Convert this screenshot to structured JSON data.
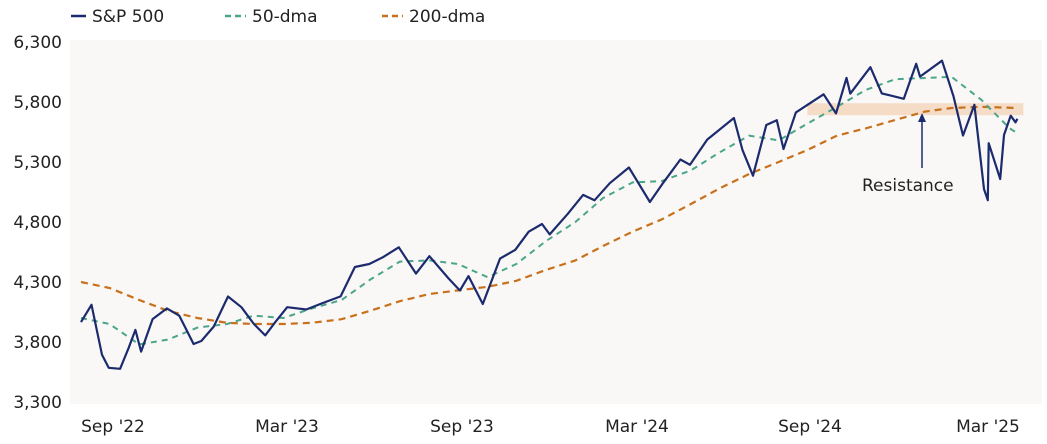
{
  "chart_data": {
    "type": "line",
    "title": "",
    "xlabel": "",
    "ylabel": "",
    "ylim": [
      3300,
      6300
    ],
    "y_ticks": [
      "6,300",
      "5,800",
      "5,300",
      "4,800",
      "4,300",
      "3,800",
      "3,300"
    ],
    "y_tick_values": [
      6300,
      5800,
      5300,
      4800,
      4300,
      3800,
      3300
    ],
    "x_ticks": [
      "Sep '22",
      "Mar '23",
      "Sep '23",
      "Mar '24",
      "Sep '24",
      "Mar '25"
    ],
    "grid": false,
    "legend": "top-left",
    "colors": {
      "sp500": "#1c2b6e",
      "dma50": "#4aa58a",
      "dma200": "#c8711c",
      "band": "#f4dcc6",
      "plot_bg": "#faf8f6"
    },
    "series": [
      {
        "name": "S&P 500",
        "style": "solid",
        "points": [
          [
            "2022-09-01",
            3966
          ],
          [
            "2022-09-12",
            4110
          ],
          [
            "2022-09-23",
            3693
          ],
          [
            "2022-09-30",
            3585
          ],
          [
            "2022-10-12",
            3577
          ],
          [
            "2022-10-21",
            3752
          ],
          [
            "2022-10-28",
            3901
          ],
          [
            "2022-11-03",
            3720
          ],
          [
            "2022-11-15",
            3991
          ],
          [
            "2022-11-30",
            4080
          ],
          [
            "2022-12-13",
            4019
          ],
          [
            "2022-12-28",
            3783
          ],
          [
            "2023-01-05",
            3808
          ],
          [
            "2023-01-18",
            3928
          ],
          [
            "2023-02-02",
            4179
          ],
          [
            "2023-02-16",
            4090
          ],
          [
            "2023-03-01",
            3951
          ],
          [
            "2023-03-13",
            3855
          ],
          [
            "2023-03-24",
            3970
          ],
          [
            "2023-04-05",
            4090
          ],
          [
            "2023-04-25",
            4071
          ],
          [
            "2023-05-12",
            4124
          ],
          [
            "2023-05-31",
            4180
          ],
          [
            "2023-06-15",
            4425
          ],
          [
            "2023-06-30",
            4450
          ],
          [
            "2023-07-14",
            4505
          ],
          [
            "2023-07-31",
            4589
          ],
          [
            "2023-08-18",
            4370
          ],
          [
            "2023-09-01",
            4515
          ],
          [
            "2023-09-21",
            4330
          ],
          [
            "2023-10-03",
            4229
          ],
          [
            "2023-10-12",
            4349
          ],
          [
            "2023-10-27",
            4117
          ],
          [
            "2023-11-14",
            4495
          ],
          [
            "2023-11-30",
            4568
          ],
          [
            "2023-12-14",
            4719
          ],
          [
            "2023-12-28",
            4783
          ],
          [
            "2024-01-05",
            4697
          ],
          [
            "2024-01-24",
            4868
          ],
          [
            "2024-02-09",
            5026
          ],
          [
            "2024-02-21",
            4981
          ],
          [
            "2024-03-08",
            5123
          ],
          [
            "2024-03-28",
            5254
          ],
          [
            "2024-04-19",
            4967
          ],
          [
            "2024-05-03",
            5127
          ],
          [
            "2024-05-21",
            5321
          ],
          [
            "2024-05-31",
            5277
          ],
          [
            "2024-06-18",
            5487
          ],
          [
            "2024-07-16",
            5667
          ],
          [
            "2024-07-25",
            5399
          ],
          [
            "2024-08-05",
            5186
          ],
          [
            "2024-08-19",
            5608
          ],
          [
            "2024-08-30",
            5648
          ],
          [
            "2024-09-06",
            5408
          ],
          [
            "2024-09-19",
            5713
          ],
          [
            "2024-10-18",
            5864
          ],
          [
            "2024-10-31",
            5705
          ],
          [
            "2024-11-11",
            6001
          ],
          [
            "2024-11-15",
            5870
          ],
          [
            "2024-12-06",
            6090
          ],
          [
            "2024-12-18",
            5872
          ],
          [
            "2025-01-10",
            5827
          ],
          [
            "2025-01-23",
            6118
          ],
          [
            "2025-01-27",
            6012
          ],
          [
            "2025-02-19",
            6144
          ],
          [
            "2025-03-03",
            5850
          ],
          [
            "2025-03-13",
            5521
          ],
          [
            "2025-03-25",
            5777
          ],
          [
            "2025-04-04",
            5074
          ],
          [
            "2025-04-08",
            4982
          ],
          [
            "2025-04-09",
            5457
          ],
          [
            "2025-04-21",
            5158
          ],
          [
            "2025-04-25",
            5525
          ],
          [
            "2025-05-02",
            5686
          ],
          [
            "2025-05-07",
            5631
          ],
          [
            "2025-05-09",
            5660
          ]
        ]
      },
      {
        "name": "50-dma",
        "style": "dashed",
        "points": [
          [
            "2022-09-01",
            4000
          ],
          [
            "2022-10-01",
            3950
          ],
          [
            "2022-11-01",
            3780
          ],
          [
            "2022-12-01",
            3820
          ],
          [
            "2023-01-01",
            3920
          ],
          [
            "2023-02-01",
            3950
          ],
          [
            "2023-03-01",
            4020
          ],
          [
            "2023-04-01",
            4000
          ],
          [
            "2023-05-01",
            4080
          ],
          [
            "2023-06-01",
            4150
          ],
          [
            "2023-07-01",
            4320
          ],
          [
            "2023-08-01",
            4470
          ],
          [
            "2023-09-01",
            4480
          ],
          [
            "2023-10-01",
            4450
          ],
          [
            "2023-11-01",
            4340
          ],
          [
            "2023-12-01",
            4450
          ],
          [
            "2024-01-01",
            4640
          ],
          [
            "2024-02-01",
            4800
          ],
          [
            "2024-03-01",
            5000
          ],
          [
            "2024-04-01",
            5130
          ],
          [
            "2024-05-01",
            5140
          ],
          [
            "2024-06-01",
            5230
          ],
          [
            "2024-07-01",
            5380
          ],
          [
            "2024-08-01",
            5520
          ],
          [
            "2024-09-01",
            5480
          ],
          [
            "2024-10-01",
            5620
          ],
          [
            "2024-11-01",
            5760
          ],
          [
            "2024-12-01",
            5900
          ],
          [
            "2025-01-01",
            5990
          ],
          [
            "2025-02-01",
            6000
          ],
          [
            "2025-03-01",
            6010
          ],
          [
            "2025-04-01",
            5820
          ],
          [
            "2025-05-01",
            5580
          ],
          [
            "2025-05-09",
            5540
          ]
        ]
      },
      {
        "name": "200-dma",
        "style": "dashed",
        "points": [
          [
            "2022-09-01",
            4300
          ],
          [
            "2022-10-01",
            4250
          ],
          [
            "2022-11-01",
            4150
          ],
          [
            "2022-12-01",
            4060
          ],
          [
            "2023-01-01",
            4000
          ],
          [
            "2023-02-01",
            3960
          ],
          [
            "2023-03-01",
            3950
          ],
          [
            "2023-04-01",
            3950
          ],
          [
            "2023-05-01",
            3960
          ],
          [
            "2023-06-01",
            3990
          ],
          [
            "2023-07-01",
            4060
          ],
          [
            "2023-08-01",
            4140
          ],
          [
            "2023-09-01",
            4200
          ],
          [
            "2023-10-01",
            4230
          ],
          [
            "2023-11-01",
            4260
          ],
          [
            "2023-12-01",
            4310
          ],
          [
            "2024-01-01",
            4400
          ],
          [
            "2024-02-01",
            4480
          ],
          [
            "2024-03-01",
            4600
          ],
          [
            "2024-04-01",
            4720
          ],
          [
            "2024-05-01",
            4820
          ],
          [
            "2024-06-01",
            4950
          ],
          [
            "2024-07-01",
            5080
          ],
          [
            "2024-08-01",
            5200
          ],
          [
            "2024-09-01",
            5300
          ],
          [
            "2024-10-01",
            5400
          ],
          [
            "2024-11-01",
            5520
          ],
          [
            "2024-12-01",
            5580
          ],
          [
            "2025-01-01",
            5650
          ],
          [
            "2025-02-01",
            5720
          ],
          [
            "2025-03-01",
            5750
          ],
          [
            "2025-04-01",
            5760
          ],
          [
            "2025-05-09",
            5750
          ]
        ]
      }
    ],
    "annotations": [
      {
        "text": "Resistance",
        "band_low": 5690,
        "band_high": 5790,
        "from": "2024-10-01",
        "to": "2025-05-09"
      }
    ]
  }
}
